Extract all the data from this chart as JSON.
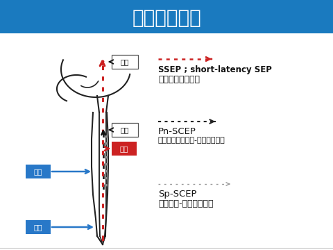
{
  "title": "感覚モニター",
  "title_bg_color": "#1a7abf",
  "title_text_color": "#ffffff",
  "bg_color": "#ffffff",
  "ssep_label1": "SSEP ; short-latency SEP",
  "ssep_label2": "体性感覚誘発電位",
  "pnscep_label1": "Pn-SCEP",
  "pnscep_label2": "末梢神経刺激刺激-脊髄誘発電位",
  "spscep_label1": "Sp-SCEP",
  "spscep_label2": "脊髄刺激-脊髄誘発電位",
  "kiroku_label": "記録",
  "shujutsu_label": "手術",
  "shigeki_label": "刺激",
  "box_blue_color": "#2878c8",
  "box_red_color": "#cc2222",
  "arrow_red_color": "#cc2222",
  "dotted_red_color": "#cc2222",
  "dotted_black_color": "#333333",
  "dotted_gray_color": "#aaaaaa",
  "spine_color": "#222222"
}
